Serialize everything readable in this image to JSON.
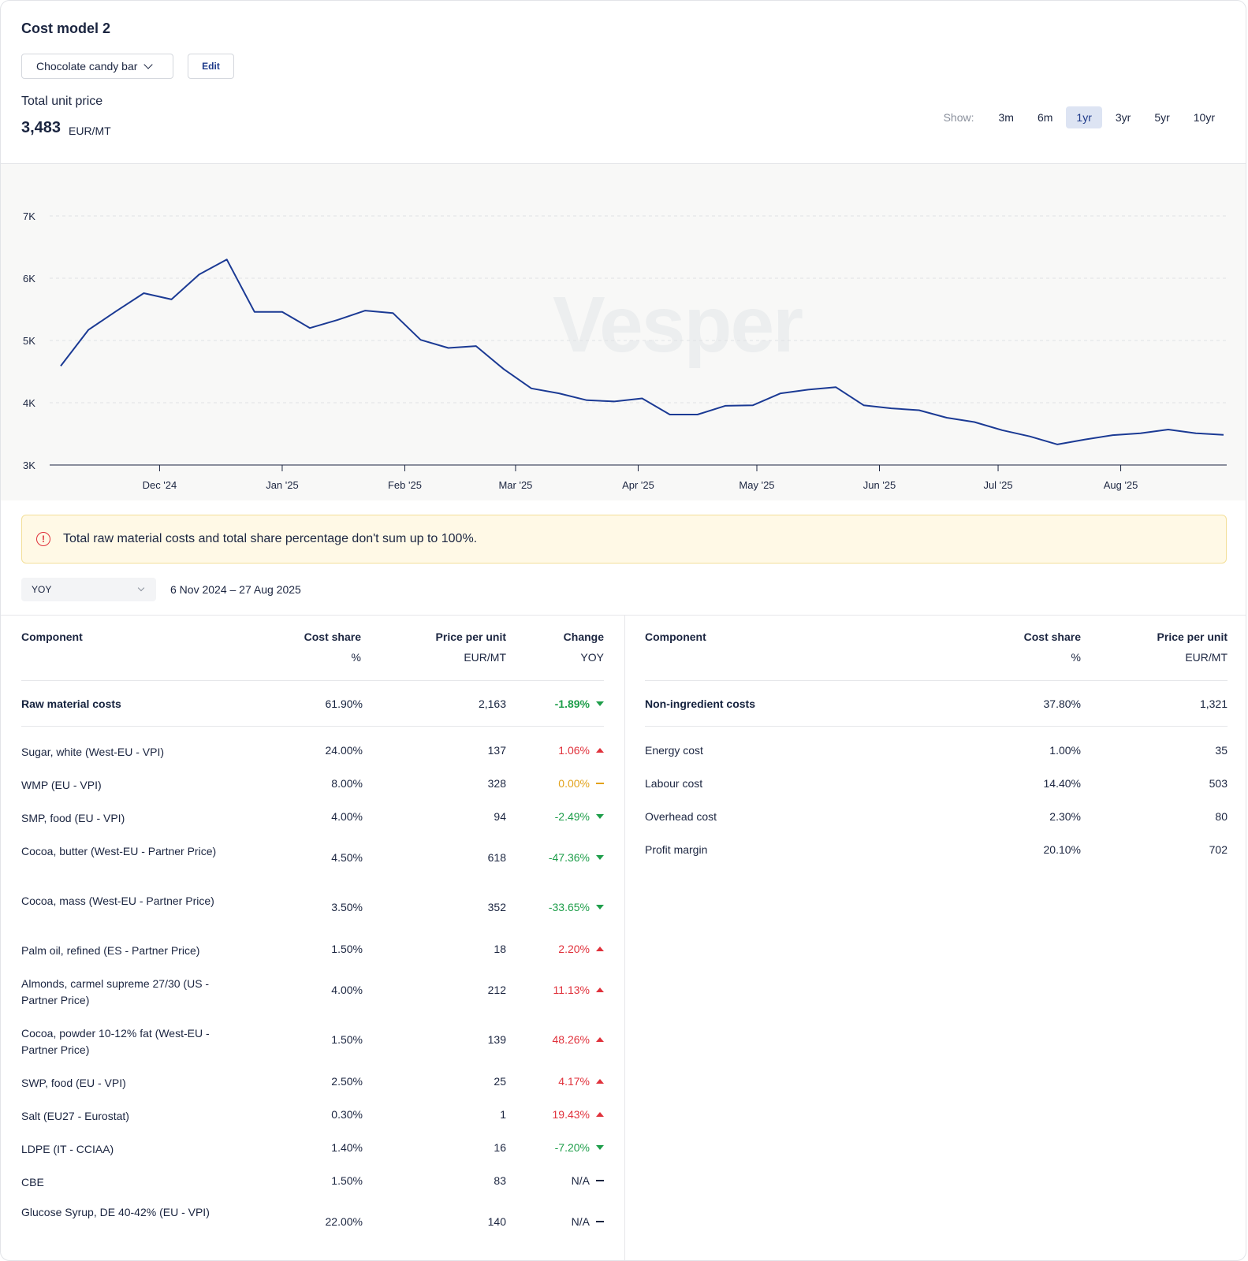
{
  "header": {
    "title": "Cost model 2",
    "product": "Chocolate candy bar",
    "edit_label": "Edit",
    "price_label": "Total unit price",
    "price_value": "3,483",
    "price_unit": "EUR/MT"
  },
  "range": {
    "label": "Show:",
    "options": [
      "3m",
      "6m",
      "1yr",
      "3yr",
      "5yr",
      "10yr"
    ],
    "active": "1yr"
  },
  "chart_data": {
    "type": "line",
    "title": "",
    "xlabel": "",
    "ylabel": "",
    "ylim": [
      3000,
      7000
    ],
    "yticks": [
      "3K",
      "4K",
      "5K",
      "6K",
      "7K"
    ],
    "xticks": [
      "Dec '24",
      "Jan '25",
      "Feb '25",
      "Mar '25",
      "Apr '25",
      "May '25",
      "Jun '25",
      "Jul '25",
      "Aug '25"
    ],
    "grid": true,
    "color": "#1b3a94",
    "x": [
      "2024-11-06",
      "2024-11-13",
      "2024-11-20",
      "2024-11-27",
      "2024-12-04",
      "2024-12-11",
      "2024-12-18",
      "2024-12-25",
      "2025-01-01",
      "2025-01-08",
      "2025-01-15",
      "2025-01-22",
      "2025-01-29",
      "2025-02-05",
      "2025-02-12",
      "2025-02-19",
      "2025-02-26",
      "2025-03-05",
      "2025-03-12",
      "2025-03-19",
      "2025-03-26",
      "2025-04-02",
      "2025-04-09",
      "2025-04-16",
      "2025-04-23",
      "2025-04-30",
      "2025-05-07",
      "2025-05-14",
      "2025-05-21",
      "2025-05-28",
      "2025-06-04",
      "2025-06-11",
      "2025-06-18",
      "2025-06-25",
      "2025-07-02",
      "2025-07-09",
      "2025-07-16",
      "2025-07-23",
      "2025-07-30",
      "2025-08-06",
      "2025-08-13",
      "2025-08-20",
      "2025-08-27"
    ],
    "y": [
      4590,
      5170,
      5470,
      5760,
      5660,
      6060,
      6300,
      5460,
      5460,
      5200,
      5330,
      5480,
      5440,
      5010,
      4880,
      4910,
      4540,
      4230,
      4150,
      4040,
      4020,
      4070,
      3810,
      3810,
      3950,
      3960,
      4150,
      4210,
      4250,
      3960,
      3910,
      3880,
      3760,
      3690,
      3560,
      3460,
      3330,
      3410,
      3480,
      3510,
      3570,
      3510,
      3483
    ]
  },
  "watermark": "Vesper",
  "warning": {
    "icon": "alert-circle-icon",
    "text": "Total raw material costs and total share percentage don't sum up to 100%."
  },
  "period": {
    "selected": "YOY",
    "range_text": "6 Nov 2024 – 27 Aug 2025"
  },
  "left_table": {
    "headers": {
      "component": "Component",
      "cost_share": "Cost share",
      "cost_share_unit": "%",
      "price": "Price per unit",
      "price_unit": "EUR/MT",
      "change": "Change",
      "change_unit": "YOY"
    },
    "summary": {
      "name": "Raw material costs",
      "share": "61.90%",
      "price": "2,163",
      "change": "-1.89%",
      "dir": "down"
    },
    "rows": [
      {
        "name": "Sugar, white (West-EU - VPI)",
        "share": "24.00%",
        "price": "137",
        "change": "1.06%",
        "dir": "up"
      },
      {
        "name": "WMP (EU - VPI)",
        "share": "8.00%",
        "price": "328",
        "change": "0.00%",
        "dir": "flat"
      },
      {
        "name": "SMP, food (EU - VPI)",
        "share": "4.00%",
        "price": "94",
        "change": "-2.49%",
        "dir": "down"
      },
      {
        "name": "Cocoa, butter (West-EU - Partner Price)",
        "share": "4.50%",
        "price": "618",
        "change": "-47.36%",
        "dir": "down"
      },
      {
        "name": "Cocoa, mass (West-EU - Partner Price)",
        "share": "3.50%",
        "price": "352",
        "change": "-33.65%",
        "dir": "down"
      },
      {
        "name": "Palm oil, refined (ES - Partner Price)",
        "share": "1.50%",
        "price": "18",
        "change": "2.20%",
        "dir": "up"
      },
      {
        "name": "Almonds, carmel supreme 27/30 (US - Partner Price)",
        "share": "4.00%",
        "price": "212",
        "change": "11.13%",
        "dir": "up"
      },
      {
        "name": "Cocoa, powder 10-12% fat (West-EU - Partner Price)",
        "share": "1.50%",
        "price": "139",
        "change": "48.26%",
        "dir": "up"
      },
      {
        "name": "SWP, food (EU - VPI)",
        "share": "2.50%",
        "price": "25",
        "change": "4.17%",
        "dir": "up"
      },
      {
        "name": "Salt (EU27 - Eurostat)",
        "share": "0.30%",
        "price": "1",
        "change": "19.43%",
        "dir": "up"
      },
      {
        "name": "LDPE (IT - CCIAA)",
        "share": "1.40%",
        "price": "16",
        "change": "-7.20%",
        "dir": "down"
      },
      {
        "name": "CBE",
        "share": "1.50%",
        "price": "83",
        "change": "N/A",
        "dir": "na"
      },
      {
        "name": "Glucose Syrup, DE 40-42% (EU - VPI)",
        "share": "22.00%",
        "price": "140",
        "change": "N/A",
        "dir": "na"
      }
    ]
  },
  "right_table": {
    "headers": {
      "component": "Component",
      "cost_share": "Cost share",
      "cost_share_unit": "%",
      "price": "Price per unit",
      "price_unit": "EUR/MT"
    },
    "summary": {
      "name": "Non-ingredient costs",
      "share": "37.80%",
      "price": "1,321"
    },
    "rows": [
      {
        "name": "Energy cost",
        "share": "1.00%",
        "price": "35"
      },
      {
        "name": "Labour cost",
        "share": "14.40%",
        "price": "503"
      },
      {
        "name": "Overhead cost",
        "share": "2.30%",
        "price": "80"
      },
      {
        "name": "Profit margin",
        "share": "20.10%",
        "price": "702"
      }
    ]
  }
}
